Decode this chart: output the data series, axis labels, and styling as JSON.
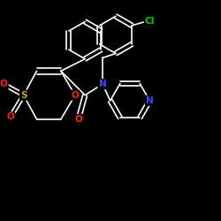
{
  "bg_color": "#000000",
  "figsize": [
    2.5,
    2.5
  ],
  "dpi": 100,
  "colors": {
    "C": "#ffffff",
    "N": "#4444ff",
    "O": "#ff2200",
    "S": "#ccaa00",
    "Cl": "#00cc00",
    "bond": "#ffffff"
  },
  "font_size": 7.5,
  "bond_lw": 1.2
}
